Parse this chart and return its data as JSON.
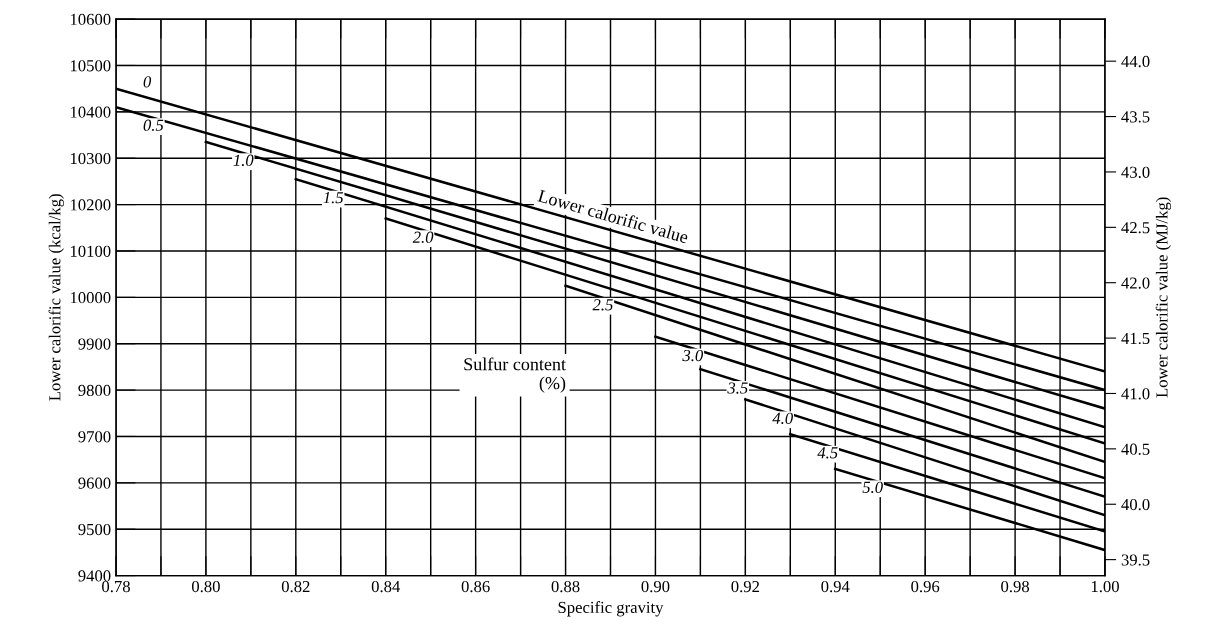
{
  "chart_data": {
    "type": "line",
    "xlabel": "Specific gravity",
    "ylabel": "Lower calorific value (kcal/kg)",
    "y2label": "Lower calorific value (MJ/kg)",
    "series": [
      {
        "name": "0",
        "color": "#000000",
        "x": [
          0.78,
          1.0
        ],
        "values": [
          10450,
          9840
        ]
      },
      {
        "name": "0.5",
        "color": "#000000",
        "x": [
          0.78,
          1.0
        ],
        "values": [
          10410,
          9800
        ]
      },
      {
        "name": "1.0",
        "color": "#000000",
        "x": [
          0.8,
          1.0
        ],
        "values": [
          10335,
          9760
        ]
      },
      {
        "name": "1.5",
        "color": "#000000",
        "x": [
          0.82,
          1.0
        ],
        "values": [
          10255,
          9720
        ]
      },
      {
        "name": "2.0",
        "color": "#000000",
        "x": [
          0.84,
          1.0
        ],
        "values": [
          10170,
          9685
        ]
      },
      {
        "name": "2.5",
        "color": "#000000",
        "x": [
          0.88,
          1.0
        ],
        "values": [
          10025,
          9645
        ]
      },
      {
        "name": "3.0",
        "color": "#000000",
        "x": [
          0.9,
          1.0
        ],
        "values": [
          9915,
          9610
        ]
      },
      {
        "name": "3.5",
        "color": "#000000",
        "x": [
          0.91,
          1.0
        ],
        "values": [
          9845,
          9570
        ]
      },
      {
        "name": "4.0",
        "color": "#000000",
        "x": [
          0.92,
          1.0
        ],
        "values": [
          9780,
          9530
        ]
      },
      {
        "name": "4.5",
        "color": "#000000",
        "x": [
          0.93,
          1.0
        ],
        "values": [
          9705,
          9495
        ]
      },
      {
        "name": "5.0",
        "color": "#000000",
        "x": [
          0.94,
          1.0
        ],
        "values": [
          9630,
          9455
        ]
      }
    ],
    "xlim": [
      0.78,
      1.0
    ],
    "xticks": [
      0.78,
      {
        "value": 0.79,
        "label": null
      },
      {
        "value": 0.8,
        "label": "0.80"
      },
      {
        "value": 0.81,
        "label": null
      },
      0.82,
      {
        "value": 0.83,
        "label": null
      },
      0.84,
      {
        "value": 0.85,
        "label": null
      },
      0.86,
      {
        "value": 0.87,
        "label": null
      },
      0.88,
      {
        "value": 0.89,
        "label": null
      },
      {
        "value": 0.9,
        "label": "0.90"
      },
      {
        "value": 0.91,
        "label": null
      },
      0.92,
      {
        "value": 0.93,
        "label": null
      },
      0.94,
      {
        "value": 0.95,
        "label": null
      },
      0.96,
      {
        "value": 0.97,
        "label": null
      },
      0.98,
      {
        "value": 0.99,
        "label": null
      },
      {
        "value": 1.0,
        "label": "1.00"
      }
    ],
    "ylim": [
      9400,
      10600
    ],
    "yticks": [
      9400,
      9500,
      9600,
      9700,
      9800,
      9900,
      10000,
      10100,
      10200,
      10300,
      10400,
      10500,
      10600
    ],
    "y2lim": [
      39.356,
      44.38
    ],
    "y2ticks": [
      39.5,
      {
        "value": 40,
        "label": "40.0"
      },
      40.5,
      {
        "value": 41,
        "label": "41.0"
      },
      41.5,
      {
        "value": 42,
        "label": "42.0"
      },
      42.5,
      {
        "value": 43,
        "label": "43.0"
      },
      43.5,
      {
        "value": 44,
        "label": "44.0"
      }
    ],
    "annotations": [
      {
        "text": "Lower calorific value",
        "x": 0.89,
        "y": 10145
      },
      "Sulfur content\n(%)"
    ],
    "grid": true,
    "marker": "none",
    "line_style": "solid"
  }
}
